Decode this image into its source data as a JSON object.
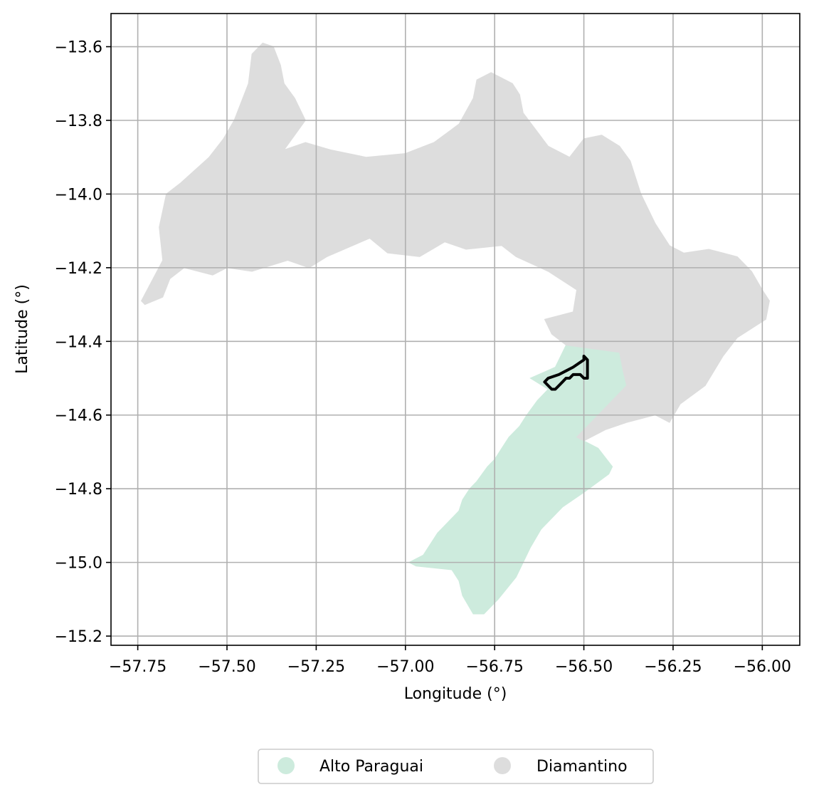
{
  "chart_data": {
    "type": "map",
    "xlabel": "Longitude (°)",
    "ylabel": "Latitude (°)",
    "xlim": [
      -57.825,
      -55.895
    ],
    "ylim": [
      -15.225,
      -13.51
    ],
    "x_ticks": [
      -57.75,
      -57.5,
      -57.25,
      -57.0,
      -56.75,
      -56.5,
      -56.25,
      -56.0
    ],
    "x_tick_labels": [
      "−57.75",
      "−57.50",
      "−57.25",
      "−57.00",
      "−56.75",
      "−56.50",
      "−56.25",
      "−56.00"
    ],
    "y_ticks": [
      -13.6,
      -13.8,
      -14.0,
      -14.2,
      -14.4,
      -14.6,
      -14.8,
      -15.0,
      -15.2
    ],
    "y_tick_labels": [
      "−13.6",
      "−13.8",
      "−14.0",
      "−14.2",
      "−14.4",
      "−14.6",
      "−14.8",
      "−15.0",
      "−15.2"
    ],
    "grid": true,
    "legend_position": "bottom-center",
    "series": [
      {
        "name": "Alto Paraguai",
        "color": "#cdebdd",
        "polygon": [
          [
            -56.55,
            -14.41
          ],
          [
            -56.4,
            -14.43
          ],
          [
            -56.39,
            -14.48
          ],
          [
            -56.38,
            -14.52
          ],
          [
            -56.44,
            -14.58
          ],
          [
            -56.48,
            -14.62
          ],
          [
            -56.52,
            -14.66
          ],
          [
            -56.46,
            -14.69
          ],
          [
            -56.42,
            -14.74
          ],
          [
            -56.43,
            -14.76
          ],
          [
            -56.5,
            -14.81
          ],
          [
            -56.56,
            -14.85
          ],
          [
            -56.62,
            -14.91
          ],
          [
            -56.65,
            -14.96
          ],
          [
            -56.69,
            -15.04
          ],
          [
            -56.74,
            -15.1
          ],
          [
            -56.78,
            -15.14
          ],
          [
            -56.81,
            -15.14
          ],
          [
            -56.84,
            -15.09
          ],
          [
            -56.85,
            -15.05
          ],
          [
            -56.87,
            -15.02
          ],
          [
            -56.97,
            -15.01
          ],
          [
            -56.99,
            -15.0
          ],
          [
            -56.95,
            -14.98
          ],
          [
            -56.93,
            -14.95
          ],
          [
            -56.91,
            -14.92
          ],
          [
            -56.88,
            -14.89
          ],
          [
            -56.85,
            -14.86
          ],
          [
            -56.84,
            -14.83
          ],
          [
            -56.82,
            -14.8
          ],
          [
            -56.8,
            -14.78
          ],
          [
            -56.77,
            -14.74
          ],
          [
            -56.75,
            -14.72
          ],
          [
            -56.73,
            -14.69
          ],
          [
            -56.71,
            -14.66
          ],
          [
            -56.68,
            -14.63
          ],
          [
            -56.66,
            -14.6
          ],
          [
            -56.63,
            -14.56
          ],
          [
            -56.6,
            -14.53
          ],
          [
            -56.65,
            -14.5
          ],
          [
            -56.58,
            -14.47
          ]
        ]
      },
      {
        "name": "Diamantino",
        "color": "#dddddd",
        "polygon": [
          [
            -57.4,
            -13.59
          ],
          [
            -57.37,
            -13.6
          ],
          [
            -57.35,
            -13.65
          ],
          [
            -57.34,
            -13.7
          ],
          [
            -57.31,
            -13.74
          ],
          [
            -57.28,
            -13.8
          ],
          [
            -57.34,
            -13.88
          ],
          [
            -57.28,
            -13.86
          ],
          [
            -57.21,
            -13.88
          ],
          [
            -57.11,
            -13.9
          ],
          [
            -57.0,
            -13.89
          ],
          [
            -56.92,
            -13.86
          ],
          [
            -56.85,
            -13.81
          ],
          [
            -56.81,
            -13.74
          ],
          [
            -56.8,
            -13.69
          ],
          [
            -56.76,
            -13.67
          ],
          [
            -56.7,
            -13.7
          ],
          [
            -56.68,
            -13.73
          ],
          [
            -56.67,
            -13.78
          ],
          [
            -56.6,
            -13.87
          ],
          [
            -56.54,
            -13.9
          ],
          [
            -56.5,
            -13.85
          ],
          [
            -56.45,
            -13.84
          ],
          [
            -56.4,
            -13.87
          ],
          [
            -56.37,
            -13.91
          ],
          [
            -56.34,
            -14.0
          ],
          [
            -56.3,
            -14.08
          ],
          [
            -56.26,
            -14.14
          ],
          [
            -56.22,
            -14.16
          ],
          [
            -56.15,
            -14.15
          ],
          [
            -56.07,
            -14.17
          ],
          [
            -56.03,
            -14.21
          ],
          [
            -56.0,
            -14.26
          ],
          [
            -55.98,
            -14.29
          ],
          [
            -55.99,
            -14.34
          ],
          [
            -56.07,
            -14.39
          ],
          [
            -56.11,
            -14.44
          ],
          [
            -56.16,
            -14.52
          ],
          [
            -56.23,
            -14.57
          ],
          [
            -56.26,
            -14.62
          ],
          [
            -56.3,
            -14.6
          ],
          [
            -56.38,
            -14.62
          ],
          [
            -56.44,
            -14.64
          ],
          [
            -56.5,
            -14.67
          ],
          [
            -56.52,
            -14.66
          ],
          [
            -56.48,
            -14.62
          ],
          [
            -56.44,
            -14.58
          ],
          [
            -56.38,
            -14.52
          ],
          [
            -56.39,
            -14.48
          ],
          [
            -56.4,
            -14.43
          ],
          [
            -56.55,
            -14.41
          ],
          [
            -56.59,
            -14.38
          ],
          [
            -56.61,
            -14.34
          ],
          [
            -56.53,
            -14.32
          ],
          [
            -56.52,
            -14.26
          ],
          [
            -56.6,
            -14.21
          ],
          [
            -56.69,
            -14.17
          ],
          [
            -56.73,
            -14.14
          ],
          [
            -56.83,
            -14.15
          ],
          [
            -56.89,
            -14.13
          ],
          [
            -56.96,
            -14.17
          ],
          [
            -57.05,
            -14.16
          ],
          [
            -57.1,
            -14.12
          ],
          [
            -57.22,
            -14.17
          ],
          [
            -57.27,
            -14.2
          ],
          [
            -57.33,
            -14.18
          ],
          [
            -57.43,
            -14.21
          ],
          [
            -57.5,
            -14.2
          ],
          [
            -57.54,
            -14.22
          ],
          [
            -57.62,
            -14.2
          ],
          [
            -57.66,
            -14.23
          ],
          [
            -57.68,
            -14.28
          ],
          [
            -57.73,
            -14.3
          ],
          [
            -57.74,
            -14.29
          ],
          [
            -57.68,
            -14.18
          ],
          [
            -57.69,
            -14.09
          ],
          [
            -57.67,
            -14.0
          ],
          [
            -57.63,
            -13.97
          ],
          [
            -57.55,
            -13.9
          ],
          [
            -57.51,
            -13.85
          ],
          [
            -57.48,
            -13.8
          ],
          [
            -57.44,
            -13.7
          ],
          [
            -57.43,
            -13.62
          ]
        ]
      }
    ],
    "boundaries": [
      {
        "stroke": "#000000",
        "line": [
          [
            -56.5,
            -14.44
          ],
          [
            -56.49,
            -14.45
          ],
          [
            -56.49,
            -14.48
          ],
          [
            -56.49,
            -14.5
          ],
          [
            -56.5,
            -14.5
          ],
          [
            -56.51,
            -14.49
          ],
          [
            -56.53,
            -14.49
          ],
          [
            -56.54,
            -14.5
          ],
          [
            -56.55,
            -14.5
          ],
          [
            -56.56,
            -14.51
          ],
          [
            -56.57,
            -14.52
          ],
          [
            -56.58,
            -14.53
          ],
          [
            -56.59,
            -14.53
          ],
          [
            -56.6,
            -14.52
          ],
          [
            -56.61,
            -14.51
          ],
          [
            -56.6,
            -14.5
          ],
          [
            -56.57,
            -14.49
          ],
          [
            -56.55,
            -14.48
          ],
          [
            -56.53,
            -14.47
          ],
          [
            -56.5,
            -14.45
          ]
        ]
      }
    ]
  }
}
